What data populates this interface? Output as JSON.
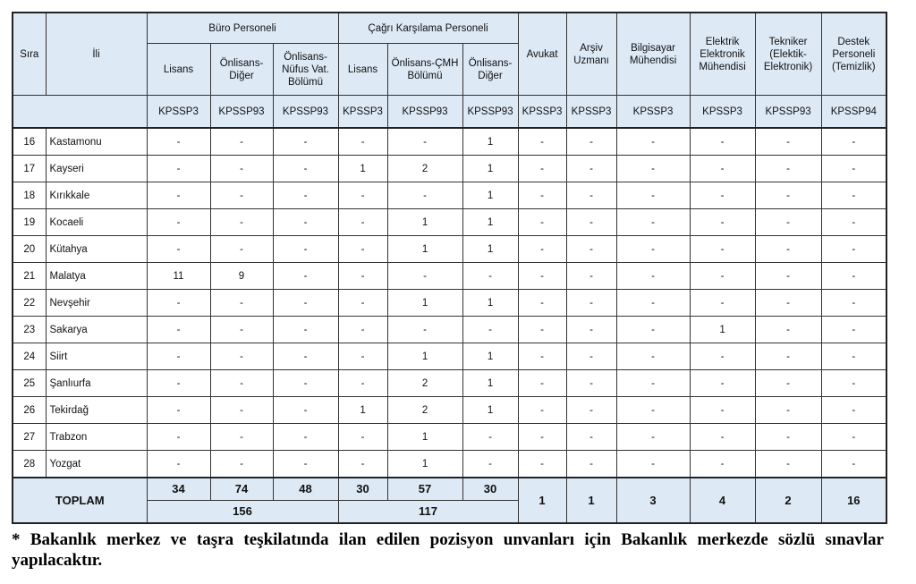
{
  "header": {
    "sira": "Sıra",
    "ili": "İli",
    "groups": {
      "buro": "Büro Personeli",
      "cagri": "Çağrı Karşılama Personeli"
    },
    "columns": [
      {
        "label": "Lisans",
        "code": "KPSSP3"
      },
      {
        "label": "Önlisans-Diğer",
        "code": "KPSSP93"
      },
      {
        "label": "Önlisans-Nüfus Vat. Bölümü",
        "code": "KPSSP93"
      },
      {
        "label": "Lisans",
        "code": "KPSSP3"
      },
      {
        "label": "Önlisans-ÇMH Bölümü",
        "code": "KPSSP93"
      },
      {
        "label": "Önlisans-Diğer",
        "code": "KPSSP93"
      },
      {
        "label": "Avukat",
        "code": "KPSSP3"
      },
      {
        "label": "Arşiv Uzmanı",
        "code": "KPSSP3"
      },
      {
        "label": "Bilgisayar Mühendisi",
        "code": "KPSSP3"
      },
      {
        "label": "Elektrik Elektronik Mühendisi",
        "code": "KPSSP3"
      },
      {
        "label": "Tekniker (Elektik-Elektronik)",
        "code": "KPSSP93"
      },
      {
        "label": "Destek Personeli (Temizlik)",
        "code": "KPSSP94"
      }
    ]
  },
  "rows": [
    {
      "sira": "16",
      "ili": "Kastamonu",
      "values": [
        "-",
        "-",
        "-",
        "-",
        "-",
        "1",
        "-",
        "-",
        "-",
        "-",
        "-",
        "-"
      ]
    },
    {
      "sira": "17",
      "ili": "Kayseri",
      "values": [
        "-",
        "-",
        "-",
        "1",
        "2",
        "1",
        "-",
        "-",
        "-",
        "-",
        "-",
        "-"
      ]
    },
    {
      "sira": "18",
      "ili": "Kırıkkale",
      "values": [
        "-",
        "-",
        "-",
        "-",
        "-",
        "1",
        "-",
        "-",
        "-",
        "-",
        "-",
        "-"
      ]
    },
    {
      "sira": "19",
      "ili": "Kocaeli",
      "values": [
        "-",
        "-",
        "-",
        "-",
        "1",
        "1",
        "-",
        "-",
        "-",
        "-",
        "-",
        "-"
      ]
    },
    {
      "sira": "20",
      "ili": "Kütahya",
      "values": [
        "-",
        "-",
        "-",
        "-",
        "1",
        "1",
        "-",
        "-",
        "-",
        "-",
        "-",
        "-"
      ]
    },
    {
      "sira": "21",
      "ili": "Malatya",
      "values": [
        "11",
        "9",
        "-",
        "-",
        "-",
        "-",
        "-",
        "-",
        "-",
        "-",
        "-",
        "-"
      ]
    },
    {
      "sira": "22",
      "ili": "Nevşehir",
      "values": [
        "-",
        "-",
        "-",
        "-",
        "1",
        "1",
        "-",
        "-",
        "-",
        "-",
        "-",
        "-"
      ]
    },
    {
      "sira": "23",
      "ili": "Sakarya",
      "values": [
        "-",
        "-",
        "-",
        "-",
        "-",
        "-",
        "-",
        "-",
        "-",
        "1",
        "-",
        "-"
      ]
    },
    {
      "sira": "24",
      "ili": "Siirt",
      "values": [
        "-",
        "-",
        "-",
        "-",
        "1",
        "1",
        "-",
        "-",
        "-",
        "-",
        "-",
        "-"
      ]
    },
    {
      "sira": "25",
      "ili": "Şanlıurfa",
      "values": [
        "-",
        "-",
        "-",
        "-",
        "2",
        "1",
        "-",
        "-",
        "-",
        "-",
        "-",
        "-"
      ]
    },
    {
      "sira": "26",
      "ili": "Tekirdağ",
      "values": [
        "-",
        "-",
        "-",
        "1",
        "2",
        "1",
        "-",
        "-",
        "-",
        "-",
        "-",
        "-"
      ]
    },
    {
      "sira": "27",
      "ili": "Trabzon",
      "values": [
        "-",
        "-",
        "-",
        "-",
        "1",
        "-",
        "-",
        "-",
        "-",
        "-",
        "-",
        "-"
      ]
    },
    {
      "sira": "28",
      "ili": "Yozgat",
      "values": [
        "-",
        "-",
        "-",
        "-",
        "1",
        "-",
        "-",
        "-",
        "-",
        "-",
        "-",
        "-"
      ]
    }
  ],
  "totals": {
    "label": "TOPLAM",
    "group_values": [
      "34",
      "74",
      "48",
      "30",
      "57",
      "30"
    ],
    "buro_total": "156",
    "cagri_total": "117",
    "other_values": [
      "1",
      "1",
      "3",
      "4",
      "2",
      "16"
    ]
  },
  "footnote": "* Bakanlık merkez ve taşra teşkilatında ilan edilen pozisyon unvanları için Bakanlık merkezde sözlü sınavlar yapılacaktır.",
  "colors": {
    "header_bg": "#dde9f5",
    "border": "#222222"
  }
}
